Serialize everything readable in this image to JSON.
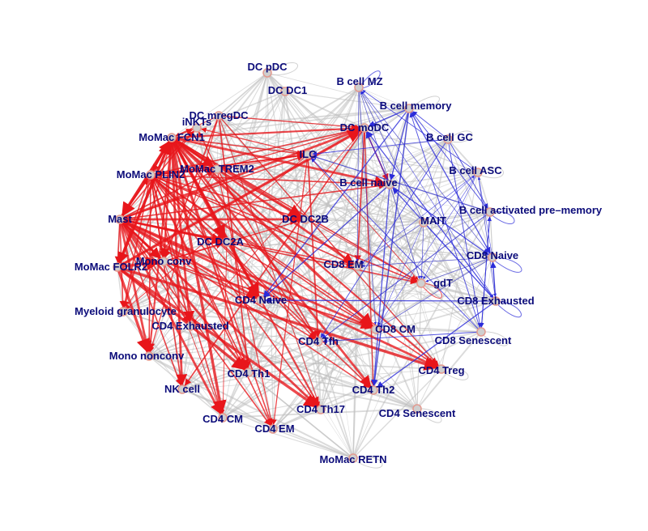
{
  "colors": {
    "background": "#ffffff",
    "edge_neutral": "#bdbdbd",
    "edge_up": "#e8161b",
    "edge_down": "#2b2bd9",
    "label": "#0c0c7a",
    "node_fill": "#cfcfcf",
    "node_ring": "#e39a8f"
  },
  "nodes": [
    {
      "id": "dc_pdc",
      "label": "DC pDC"
    },
    {
      "id": "dc_dc1",
      "label": "DC DC1"
    },
    {
      "id": "b_mz",
      "label": "B cell MZ"
    },
    {
      "id": "b_memory",
      "label": "B cell memory"
    },
    {
      "id": "b_gc",
      "label": "B cell GC"
    },
    {
      "id": "b_asc",
      "label": "B cell ASC"
    },
    {
      "id": "b_naive",
      "label": "B cell naive"
    },
    {
      "id": "b_actpre",
      "label": "B cell activated pre–memory"
    },
    {
      "id": "mait",
      "label": "MAIT"
    },
    {
      "id": "cd8_naive",
      "label": "CD8 Naive"
    },
    {
      "id": "cd8_exh",
      "label": "CD8 Exhausted"
    },
    {
      "id": "cd8_sen",
      "label": "CD8 Senescent"
    },
    {
      "id": "gdt",
      "label": "gdT"
    },
    {
      "id": "cd4_treg",
      "label": "CD4 Treg"
    },
    {
      "id": "cd4_sen",
      "label": "CD4 Senescent"
    },
    {
      "id": "cd4_th2",
      "label": "CD4 Th2"
    },
    {
      "id": "cd8_cm",
      "label": "CD8 CM"
    },
    {
      "id": "cd8_em",
      "label": "CD8 EM"
    },
    {
      "id": "cd4_th17",
      "label": "CD4 Th17"
    },
    {
      "id": "momac_retn",
      "label": "MoMac RETN"
    },
    {
      "id": "cd4_em",
      "label": "CD4 EM"
    },
    {
      "id": "cd4_cm",
      "label": "CD4 CM"
    },
    {
      "id": "cd4_th1",
      "label": "CD4 Th1"
    },
    {
      "id": "nk",
      "label": "NK cell"
    },
    {
      "id": "cd4_tfh",
      "label": "CD4 Tfh"
    },
    {
      "id": "mono_nonconv",
      "label": "Mono nonconv"
    },
    {
      "id": "cd4_exh",
      "label": "CD4 Exhausted"
    },
    {
      "id": "cd4_naive",
      "label": "CD4 Naive"
    },
    {
      "id": "myeloid_gran",
      "label": "Myeloid granulocyte"
    },
    {
      "id": "mono_conv",
      "label": "Mono conv"
    },
    {
      "id": "momac_folr2",
      "label": "MoMac FOLR2"
    },
    {
      "id": "dc_dc2a",
      "label": "DC DC2A"
    },
    {
      "id": "dc_dc2b",
      "label": "DC DC2B"
    },
    {
      "id": "mast",
      "label": "Mast"
    },
    {
      "id": "momac_plin2",
      "label": "MoMac PLIN2"
    },
    {
      "id": "momac_trem2",
      "label": "MoMac TREM2"
    },
    {
      "id": "momac_fcn1",
      "label": "MoMac FCN1"
    },
    {
      "id": "inkts",
      "label": "iNKTs"
    },
    {
      "id": "dc_mregdc",
      "label": "DC mregDC"
    },
    {
      "id": "ilc",
      "label": "ILC"
    },
    {
      "id": "dc_modc",
      "label": "DC moDC"
    }
  ]
}
